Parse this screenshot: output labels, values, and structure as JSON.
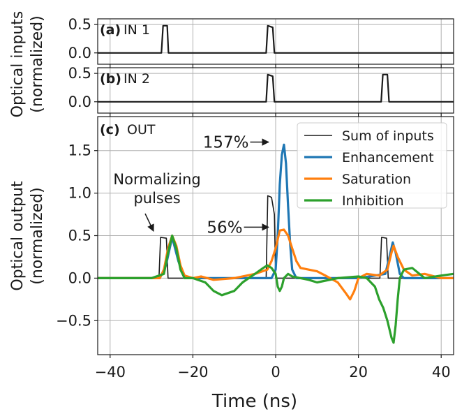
{
  "chart_data": [
    {
      "type": "line",
      "panel_label": "(a)",
      "panel_title": "IN 1",
      "ylim": [
        -0.2,
        0.6
      ],
      "xlim": [
        -43,
        43
      ],
      "yticks": [
        0.0,
        0.5
      ],
      "ytick_labels": [
        "0.0",
        "0.5"
      ],
      "grid": true,
      "series": [
        {
          "color": "#1a1a1a",
          "x": [
            -43,
            -27.6,
            -27.2,
            -26.2,
            -25.9,
            -2.3,
            -1.9,
            -0.7,
            -0.3,
            43
          ],
          "y": [
            0,
            0,
            0.48,
            0.48,
            0,
            0,
            0.48,
            0.45,
            0,
            0
          ]
        }
      ]
    },
    {
      "type": "line",
      "panel_label": "(b)",
      "panel_title": "IN 2",
      "ylim": [
        -0.2,
        0.6
      ],
      "xlim": [
        -43,
        43
      ],
      "yticks": [
        0.0,
        0.5
      ],
      "ytick_labels": [
        "0.0",
        "0.5"
      ],
      "grid": true,
      "series": [
        {
          "color": "#1a1a1a",
          "x": [
            -43,
            -2.3,
            -1.9,
            -0.7,
            -0.3,
            25.5,
            25.9,
            27.0,
            27.4,
            43
          ],
          "y": [
            0,
            0,
            0.48,
            0.45,
            0,
            0,
            0.48,
            0.48,
            0,
            0
          ]
        }
      ]
    },
    {
      "type": "line",
      "panel_label": "(c)",
      "panel_title": "OUT",
      "xlabel": "Time (ns)",
      "ylim": [
        -0.9,
        1.9
      ],
      "xlim": [
        -43,
        43
      ],
      "xticks": [
        -40,
        -20,
        0,
        20,
        40
      ],
      "xtick_labels": [
        "−40",
        "−20",
        "0",
        "20",
        "40"
      ],
      "yticks": [
        -0.5,
        0.0,
        0.5,
        1.0,
        1.5
      ],
      "ytick_labels": [
        "−0.5",
        "0.0",
        "0.5",
        "1.0",
        "1.5"
      ],
      "grid": true,
      "legend_position": "top-right",
      "series": [
        {
          "name": "Sum of inputs",
          "color": "#1a1a1a",
          "x": [
            -43,
            -28.2,
            -27.8,
            -26.4,
            -26.0,
            -2.3,
            -1.9,
            -1.0,
            -0.3,
            0.0,
            25.2,
            25.6,
            26.8,
            27.2,
            43
          ],
          "y": [
            0,
            0,
            0.48,
            0.47,
            0,
            0,
            0.97,
            0.95,
            0.75,
            0,
            0,
            0.48,
            0.47,
            0,
            0
          ]
        },
        {
          "name": "Enhancement",
          "color": "#1f77b4",
          "x": [
            -43,
            -28,
            -26.5,
            -25,
            -23.5,
            -22,
            -20,
            -10,
            -1,
            0,
            0.5,
            1,
            1.5,
            2,
            2.5,
            3,
            3.5,
            4,
            5,
            10,
            20,
            26.5,
            27.5,
            28.3,
            29,
            30,
            31,
            32,
            43
          ],
          "y": [
            0,
            0,
            0.15,
            0.48,
            0.2,
            0,
            0,
            0,
            0,
            0.1,
            0.5,
            1.1,
            1.45,
            1.57,
            1.35,
            0.85,
            0.4,
            0.1,
            0,
            0,
            0,
            0.05,
            0.25,
            0.42,
            0.3,
            0.05,
            0,
            0,
            0
          ]
        },
        {
          "name": "Saturation",
          "color": "#ff7f0e",
          "x": [
            -43,
            -28,
            -27,
            -26,
            -25,
            -24,
            -23,
            -22,
            -20,
            -18,
            -15,
            -10,
            -5,
            -2,
            -1,
            0,
            1,
            2,
            3,
            4,
            5,
            6,
            8,
            10,
            12,
            15,
            17,
            18,
            19,
            20,
            22,
            25,
            27,
            28,
            28.5,
            29.5,
            31,
            33,
            36,
            40,
            43
          ],
          "y": [
            0,
            0,
            0.1,
            0.35,
            0.5,
            0.38,
            0.15,
            0.03,
            0,
            0.02,
            -0.02,
            0,
            0.05,
            0.1,
            0.2,
            0.35,
            0.56,
            0.57,
            0.5,
            0.35,
            0.2,
            0.12,
            0.1,
            0.08,
            0.03,
            -0.05,
            -0.18,
            -0.25,
            -0.15,
            0,
            0.05,
            0.03,
            0.1,
            0.3,
            0.38,
            0.25,
            0.1,
            0.03,
            0.05,
            0,
            0
          ]
        },
        {
          "name": "Inhibition",
          "color": "#2ca02c",
          "x": [
            -43,
            -30,
            -27,
            -26,
            -25,
            -24,
            -23,
            -22,
            -20,
            -17,
            -15,
            -13,
            -10,
            -8,
            -5,
            -3,
            -2,
            -1,
            0,
            0.5,
            1,
            1.5,
            2,
            3,
            4,
            6,
            8,
            10,
            15,
            20,
            22,
            24,
            25,
            26,
            27,
            28,
            28.5,
            29,
            29.5,
            30,
            31,
            33,
            36,
            40,
            43
          ],
          "y": [
            0,
            0,
            0.05,
            0.3,
            0.5,
            0.35,
            0.1,
            0,
            0,
            -0.05,
            -0.15,
            -0.2,
            -0.15,
            -0.05,
            0.05,
            0.12,
            0.15,
            0.12,
            0.05,
            -0.1,
            -0.15,
            -0.1,
            0,
            0.05,
            0.02,
            0,
            -0.02,
            -0.05,
            0,
            0.02,
            0,
            -0.1,
            -0.25,
            -0.35,
            -0.5,
            -0.7,
            -0.76,
            -0.55,
            -0.25,
            0,
            0.1,
            0.12,
            0,
            0.03,
            0.05
          ]
        }
      ],
      "annotations": [
        {
          "text": "157%",
          "x": -6.5,
          "y": 1.6,
          "arrow_to": [
            2,
            1.6
          ]
        },
        {
          "text": "56%",
          "x": -8,
          "y": 0.6,
          "arrow_to": [
            2,
            0.6
          ]
        },
        {
          "lines": [
            "Normalizing",
            "pulses"
          ],
          "x": -30,
          "y": 1.0,
          "arrow_to": [
            -28.5,
            0.52
          ]
        }
      ]
    }
  ],
  "shared_ylabel_top": [
    "Optical inputs",
    "(normalized)"
  ],
  "shared_ylabel_bottom": [
    "Optical output",
    "(normalized)"
  ]
}
